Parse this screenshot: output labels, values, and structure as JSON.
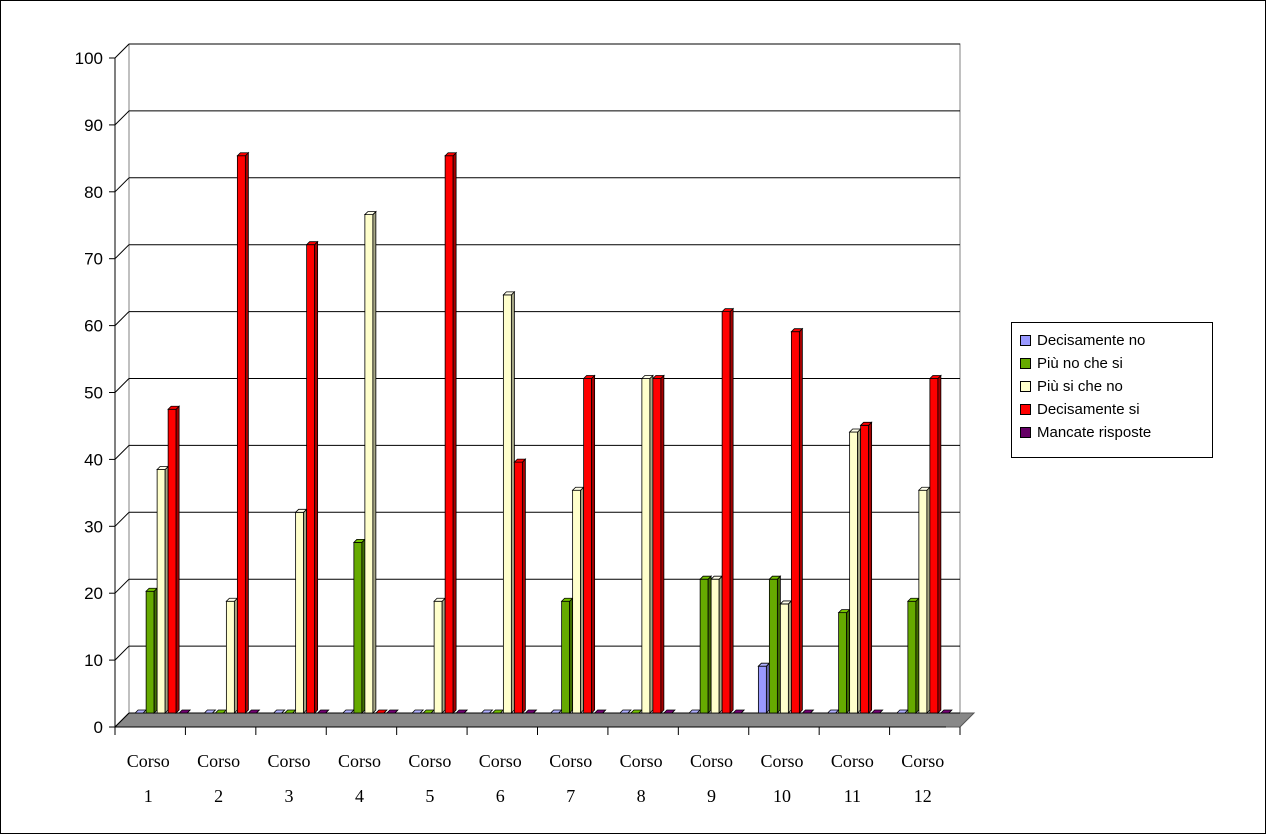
{
  "chart_data": {
    "type": "bar",
    "style": "3d-clustered-column",
    "categories": [
      [
        "Corso",
        "1"
      ],
      [
        "Corso",
        "2"
      ],
      [
        "Corso",
        "3"
      ],
      [
        "Corso",
        "4"
      ],
      [
        "Corso",
        "5"
      ],
      [
        "Corso",
        "6"
      ],
      [
        "Corso",
        "7"
      ],
      [
        "Corso",
        "8"
      ],
      [
        "Corso",
        "9"
      ],
      [
        "Corso",
        "10"
      ],
      [
        "Corso",
        "11"
      ],
      [
        "Corso",
        "12"
      ]
    ],
    "series": [
      {
        "name": "Decisamente no",
        "color": "#9999ff",
        "values": [
          0,
          0,
          0,
          0,
          0,
          0,
          0,
          0,
          0,
          7,
          0,
          0
        ]
      },
      {
        "name": "Più no che si",
        "color": "#66aa00",
        "values": [
          18.2,
          0,
          0,
          25.5,
          0,
          0,
          16.7,
          0,
          20,
          20,
          15,
          16.7
        ]
      },
      {
        "name": "Più si che no",
        "color": "#ffffcc",
        "values": [
          36.4,
          16.7,
          30,
          74.5,
          16.7,
          62.5,
          33.3,
          50,
          20,
          16.3,
          42,
          33.3
        ]
      },
      {
        "name": "Decisamente si",
        "color": "#ff0000",
        "values": [
          45.4,
          83.3,
          70,
          0,
          83.3,
          37.5,
          50,
          50,
          60,
          57,
          43,
          50
        ]
      },
      {
        "name": "Mancate risposte",
        "color": "#660066",
        "values": [
          0,
          0,
          0,
          0,
          0,
          0,
          0,
          0,
          0,
          0,
          0,
          0
        ]
      }
    ],
    "yticks": [
      "0",
      "10",
      "20",
      "30",
      "40",
      "50",
      "60",
      "70",
      "80",
      "90",
      "100"
    ],
    "ylim": [
      0,
      100
    ],
    "grid": true,
    "legend_position": "right"
  }
}
